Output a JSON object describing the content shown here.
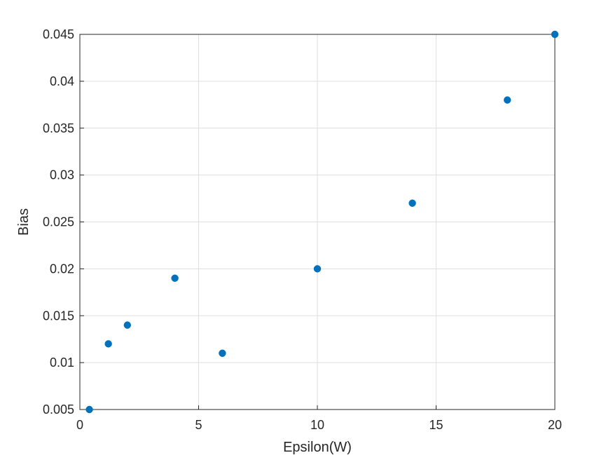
{
  "chart_data": {
    "type": "scatter",
    "title": "",
    "xlabel": "Epsilon(W)",
    "ylabel": "Bias",
    "xlim": [
      0,
      20
    ],
    "ylim": [
      0.005,
      0.045
    ],
    "xticks": [
      0,
      5,
      10,
      15,
      20
    ],
    "xtick_labels": [
      "0",
      "5",
      "10",
      "15",
      "20"
    ],
    "yticks": [
      0.005,
      0.01,
      0.015,
      0.02,
      0.025,
      0.03,
      0.035,
      0.04,
      0.045
    ],
    "ytick_labels": [
      "0.005",
      "0.01",
      "0.015",
      "0.02",
      "0.025",
      "0.03",
      "0.035",
      "0.04",
      "0.045"
    ],
    "grid": true,
    "series": [
      {
        "color": "#0072BD",
        "x": [
          0.4,
          1.2,
          2,
          4,
          6,
          10,
          14,
          18,
          20
        ],
        "y": [
          0.005,
          0.012,
          0.014,
          0.019,
          0.011,
          0.02,
          0.027,
          0.038,
          0.045
        ]
      }
    ]
  }
}
